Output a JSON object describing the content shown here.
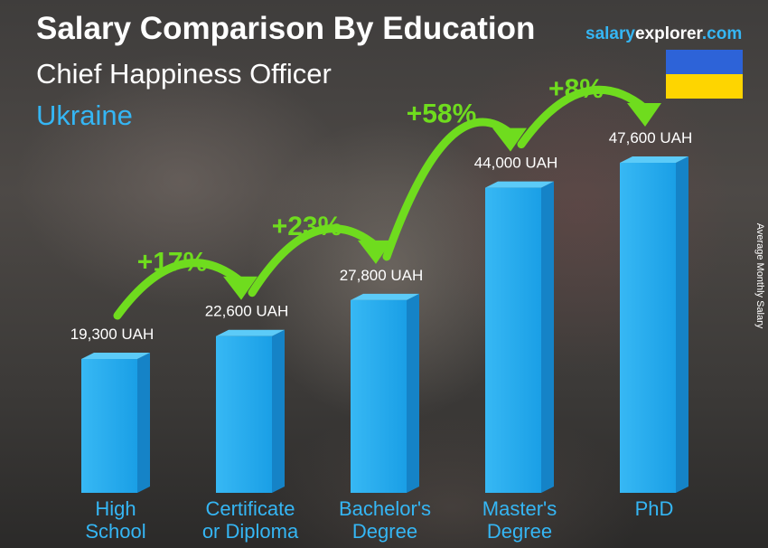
{
  "header": {
    "title": "Salary Comparison By Education",
    "subtitle": "Chief Happiness Officer",
    "country": "Ukraine"
  },
  "brand": {
    "part1": "salary",
    "part2": "explorer",
    "part3": ".com"
  },
  "flag": {
    "colors": [
      "#2d63d8",
      "#fed500"
    ],
    "country": "Ukraine"
  },
  "chart_data": {
    "type": "bar",
    "categories": [
      [
        "High",
        "School"
      ],
      [
        "Certificate",
        "or Diploma"
      ],
      [
        "Bachelor's",
        "Degree"
      ],
      [
        "Master's",
        "Degree"
      ],
      [
        "PhD"
      ]
    ],
    "values": [
      19300,
      22600,
      27800,
      44000,
      47600
    ],
    "value_labels": [
      "19,300 UAH",
      "22,600 UAH",
      "27,800 UAH",
      "44,000 UAH",
      "47,600 UAH"
    ],
    "unit": "UAH",
    "ylabel": "Average Monthly Salary",
    "increases": [
      "+17%",
      "+23%",
      "+58%",
      "+8%"
    ],
    "ylim": [
      0,
      47600
    ],
    "grid": false,
    "colors": {
      "bar": "#1ea4ea",
      "arrow": "#6fdc1e",
      "category_label": "#35b6f4"
    }
  }
}
